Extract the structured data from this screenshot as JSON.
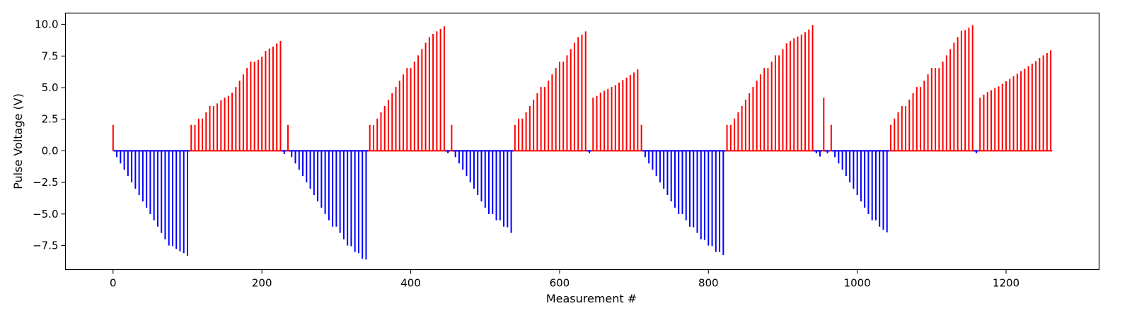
{
  "chart_data": {
    "type": "bar",
    "title": "",
    "xlabel": "Measurement #",
    "ylabel": "Pulse Voltage (V)",
    "xlim": [
      -64,
      1325
    ],
    "ylim": [
      -9.4,
      10.9
    ],
    "xticks": [
      0,
      200,
      400,
      600,
      800,
      1000,
      1200
    ],
    "yticks": [
      -7.5,
      -5.0,
      -2.5,
      0.0,
      2.5,
      5.0,
      7.5,
      10.0
    ],
    "xtick_labels": [
      "0",
      "200",
      "400",
      "600",
      "800",
      "1000",
      "1200"
    ],
    "ytick_labels": [
      "−7.5",
      "−5.0",
      "−2.5",
      "0.0",
      "2.5",
      "5.0",
      "7.5",
      "10.0"
    ],
    "colors": {
      "positive": "#ff0000",
      "negative": "#0000ff",
      "axes": "#000000"
    },
    "grid": false,
    "last_x": 1262,
    "pulses": [
      {
        "x": 0,
        "v": 2.05
      },
      {
        "x": 5,
        "v": -0.5
      },
      {
        "x": 10,
        "v": -1.0
      },
      {
        "x": 15,
        "v": -1.5
      },
      {
        "x": 20,
        "v": -2.0
      },
      {
        "x": 25,
        "v": -2.5
      },
      {
        "x": 30,
        "v": -3.0
      },
      {
        "x": 35,
        "v": -3.5
      },
      {
        "x": 40,
        "v": -4.0
      },
      {
        "x": 45,
        "v": -4.5
      },
      {
        "x": 50,
        "v": -5.0
      },
      {
        "x": 55,
        "v": -5.5
      },
      {
        "x": 60,
        "v": -6.0
      },
      {
        "x": 65,
        "v": -6.5
      },
      {
        "x": 70,
        "v": -7.0
      },
      {
        "x": 75,
        "v": -7.5
      },
      {
        "x": 80,
        "v": -7.55
      },
      {
        "x": 85,
        "v": -7.75
      },
      {
        "x": 90,
        "v": -7.95
      },
      {
        "x": 95,
        "v": -8.1
      },
      {
        "x": 100,
        "v": -8.3
      },
      {
        "x": 105,
        "v": 2.05
      },
      {
        "x": 110,
        "v": 2.05
      },
      {
        "x": 115,
        "v": 2.55
      },
      {
        "x": 120,
        "v": 2.55
      },
      {
        "x": 125,
        "v": 3.05
      },
      {
        "x": 130,
        "v": 3.55
      },
      {
        "x": 135,
        "v": 3.55
      },
      {
        "x": 140,
        "v": 3.75
      },
      {
        "x": 145,
        "v": 4.0
      },
      {
        "x": 150,
        "v": 4.2
      },
      {
        "x": 155,
        "v": 4.35
      },
      {
        "x": 160,
        "v": 4.6
      },
      {
        "x": 165,
        "v": 5.05
      },
      {
        "x": 170,
        "v": 5.55
      },
      {
        "x": 175,
        "v": 6.05
      },
      {
        "x": 180,
        "v": 6.55
      },
      {
        "x": 185,
        "v": 7.05
      },
      {
        "x": 190,
        "v": 7.05
      },
      {
        "x": 195,
        "v": 7.2
      },
      {
        "x": 200,
        "v": 7.45
      },
      {
        "x": 205,
        "v": 7.9
      },
      {
        "x": 210,
        "v": 8.1
      },
      {
        "x": 215,
        "v": 8.25
      },
      {
        "x": 220,
        "v": 8.5
      },
      {
        "x": 225,
        "v": 8.7
      },
      {
        "x": 230,
        "v": -0.25
      },
      {
        "x": 235,
        "v": 2.05
      },
      {
        "x": 240,
        "v": -0.5
      },
      {
        "x": 245,
        "v": -1.0
      },
      {
        "x": 250,
        "v": -1.5
      },
      {
        "x": 255,
        "v": -2.0
      },
      {
        "x": 260,
        "v": -2.5
      },
      {
        "x": 265,
        "v": -3.0
      },
      {
        "x": 270,
        "v": -3.5
      },
      {
        "x": 275,
        "v": -4.0
      },
      {
        "x": 280,
        "v": -4.5
      },
      {
        "x": 285,
        "v": -5.0
      },
      {
        "x": 290,
        "v": -5.5
      },
      {
        "x": 295,
        "v": -6.0
      },
      {
        "x": 300,
        "v": -6.0
      },
      {
        "x": 305,
        "v": -6.5
      },
      {
        "x": 310,
        "v": -7.0
      },
      {
        "x": 315,
        "v": -7.5
      },
      {
        "x": 320,
        "v": -7.55
      },
      {
        "x": 325,
        "v": -8.0
      },
      {
        "x": 330,
        "v": -8.1
      },
      {
        "x": 335,
        "v": -8.55
      },
      {
        "x": 340,
        "v": -8.6
      },
      {
        "x": 345,
        "v": 2.05
      },
      {
        "x": 350,
        "v": 2.05
      },
      {
        "x": 355,
        "v": 2.55
      },
      {
        "x": 360,
        "v": 3.05
      },
      {
        "x": 365,
        "v": 3.55
      },
      {
        "x": 370,
        "v": 4.05
      },
      {
        "x": 375,
        "v": 4.55
      },
      {
        "x": 380,
        "v": 5.05
      },
      {
        "x": 385,
        "v": 5.55
      },
      {
        "x": 390,
        "v": 6.05
      },
      {
        "x": 395,
        "v": 6.55
      },
      {
        "x": 400,
        "v": 6.55
      },
      {
        "x": 405,
        "v": 7.05
      },
      {
        "x": 410,
        "v": 7.55
      },
      {
        "x": 415,
        "v": 8.05
      },
      {
        "x": 420,
        "v": 8.55
      },
      {
        "x": 425,
        "v": 9.0
      },
      {
        "x": 430,
        "v": 9.25
      },
      {
        "x": 435,
        "v": 9.45
      },
      {
        "x": 440,
        "v": 9.65
      },
      {
        "x": 445,
        "v": 9.85
      },
      {
        "x": 450,
        "v": -0.2
      },
      {
        "x": 455,
        "v": 2.05
      },
      {
        "x": 460,
        "v": -0.5
      },
      {
        "x": 465,
        "v": -1.0
      },
      {
        "x": 470,
        "v": -1.5
      },
      {
        "x": 475,
        "v": -2.0
      },
      {
        "x": 480,
        "v": -2.5
      },
      {
        "x": 485,
        "v": -3.0
      },
      {
        "x": 490,
        "v": -3.5
      },
      {
        "x": 495,
        "v": -4.0
      },
      {
        "x": 500,
        "v": -4.5
      },
      {
        "x": 505,
        "v": -5.0
      },
      {
        "x": 510,
        "v": -5.0
      },
      {
        "x": 515,
        "v": -5.5
      },
      {
        "x": 520,
        "v": -5.5
      },
      {
        "x": 525,
        "v": -6.0
      },
      {
        "x": 530,
        "v": -6.05
      },
      {
        "x": 535,
        "v": -6.5
      },
      {
        "x": 540,
        "v": 2.05
      },
      {
        "x": 545,
        "v": 2.55
      },
      {
        "x": 550,
        "v": 2.55
      },
      {
        "x": 555,
        "v": 3.05
      },
      {
        "x": 560,
        "v": 3.55
      },
      {
        "x": 565,
        "v": 4.05
      },
      {
        "x": 570,
        "v": 4.55
      },
      {
        "x": 575,
        "v": 5.05
      },
      {
        "x": 580,
        "v": 5.05
      },
      {
        "x": 585,
        "v": 5.55
      },
      {
        "x": 590,
        "v": 6.05
      },
      {
        "x": 595,
        "v": 6.55
      },
      {
        "x": 600,
        "v": 7.05
      },
      {
        "x": 605,
        "v": 7.05
      },
      {
        "x": 610,
        "v": 7.55
      },
      {
        "x": 615,
        "v": 8.05
      },
      {
        "x": 620,
        "v": 8.55
      },
      {
        "x": 625,
        "v": 9.0
      },
      {
        "x": 630,
        "v": 9.2
      },
      {
        "x": 635,
        "v": 9.45
      },
      {
        "x": 640,
        "v": -0.2
      },
      {
        "x": 645,
        "v": 4.2
      },
      {
        "x": 650,
        "v": 4.35
      },
      {
        "x": 655,
        "v": 4.6
      },
      {
        "x": 660,
        "v": 4.75
      },
      {
        "x": 665,
        "v": 4.9
      },
      {
        "x": 670,
        "v": 5.05
      },
      {
        "x": 675,
        "v": 5.2
      },
      {
        "x": 680,
        "v": 5.4
      },
      {
        "x": 685,
        "v": 5.6
      },
      {
        "x": 690,
        "v": 5.8
      },
      {
        "x": 695,
        "v": 6.0
      },
      {
        "x": 700,
        "v": 6.2
      },
      {
        "x": 705,
        "v": 6.45
      },
      {
        "x": 710,
        "v": 2.05
      },
      {
        "x": 715,
        "v": -0.5
      },
      {
        "x": 720,
        "v": -1.0
      },
      {
        "x": 725,
        "v": -1.5
      },
      {
        "x": 730,
        "v": -2.0
      },
      {
        "x": 735,
        "v": -2.5
      },
      {
        "x": 740,
        "v": -3.0
      },
      {
        "x": 745,
        "v": -3.5
      },
      {
        "x": 750,
        "v": -4.0
      },
      {
        "x": 755,
        "v": -4.5
      },
      {
        "x": 760,
        "v": -5.0
      },
      {
        "x": 765,
        "v": -5.0
      },
      {
        "x": 770,
        "v": -5.5
      },
      {
        "x": 775,
        "v": -6.0
      },
      {
        "x": 780,
        "v": -6.05
      },
      {
        "x": 785,
        "v": -6.5
      },
      {
        "x": 790,
        "v": -7.0
      },
      {
        "x": 795,
        "v": -7.05
      },
      {
        "x": 800,
        "v": -7.5
      },
      {
        "x": 805,
        "v": -7.55
      },
      {
        "x": 810,
        "v": -8.0
      },
      {
        "x": 815,
        "v": -8.0
      },
      {
        "x": 820,
        "v": -8.25
      },
      {
        "x": 825,
        "v": 2.05
      },
      {
        "x": 830,
        "v": 2.05
      },
      {
        "x": 835,
        "v": 2.55
      },
      {
        "x": 840,
        "v": 3.05
      },
      {
        "x": 845,
        "v": 3.55
      },
      {
        "x": 850,
        "v": 4.05
      },
      {
        "x": 855,
        "v": 4.55
      },
      {
        "x": 860,
        "v": 5.05
      },
      {
        "x": 865,
        "v": 5.55
      },
      {
        "x": 870,
        "v": 6.05
      },
      {
        "x": 875,
        "v": 6.55
      },
      {
        "x": 880,
        "v": 6.55
      },
      {
        "x": 885,
        "v": 7.05
      },
      {
        "x": 890,
        "v": 7.55
      },
      {
        "x": 895,
        "v": 7.55
      },
      {
        "x": 900,
        "v": 8.05
      },
      {
        "x": 905,
        "v": 8.5
      },
      {
        "x": 910,
        "v": 8.7
      },
      {
        "x": 915,
        "v": 8.9
      },
      {
        "x": 920,
        "v": 9.05
      },
      {
        "x": 925,
        "v": 9.2
      },
      {
        "x": 930,
        "v": 9.4
      },
      {
        "x": 935,
        "v": 9.6
      },
      {
        "x": 940,
        "v": 9.95
      },
      {
        "x": 945,
        "v": -0.2
      },
      {
        "x": 950,
        "v": -0.45
      },
      {
        "x": 955,
        "v": 4.2
      },
      {
        "x": 960,
        "v": -0.2
      },
      {
        "x": 965,
        "v": 2.05
      },
      {
        "x": 970,
        "v": -0.5
      },
      {
        "x": 975,
        "v": -1.0
      },
      {
        "x": 980,
        "v": -1.5
      },
      {
        "x": 985,
        "v": -2.0
      },
      {
        "x": 990,
        "v": -2.5
      },
      {
        "x": 995,
        "v": -3.0
      },
      {
        "x": 1000,
        "v": -3.5
      },
      {
        "x": 1005,
        "v": -4.0
      },
      {
        "x": 1010,
        "v": -4.5
      },
      {
        "x": 1015,
        "v": -5.0
      },
      {
        "x": 1020,
        "v": -5.5
      },
      {
        "x": 1025,
        "v": -5.5
      },
      {
        "x": 1030,
        "v": -6.0
      },
      {
        "x": 1035,
        "v": -6.25
      },
      {
        "x": 1040,
        "v": -6.45
      },
      {
        "x": 1045,
        "v": 2.05
      },
      {
        "x": 1050,
        "v": 2.55
      },
      {
        "x": 1055,
        "v": 3.05
      },
      {
        "x": 1060,
        "v": 3.55
      },
      {
        "x": 1065,
        "v": 3.55
      },
      {
        "x": 1070,
        "v": 4.05
      },
      {
        "x": 1075,
        "v": 4.55
      },
      {
        "x": 1080,
        "v": 5.05
      },
      {
        "x": 1085,
        "v": 5.05
      },
      {
        "x": 1090,
        "v": 5.55
      },
      {
        "x": 1095,
        "v": 6.05
      },
      {
        "x": 1100,
        "v": 6.55
      },
      {
        "x": 1105,
        "v": 6.55
      },
      {
        "x": 1110,
        "v": 6.55
      },
      {
        "x": 1115,
        "v": 7.05
      },
      {
        "x": 1120,
        "v": 7.55
      },
      {
        "x": 1125,
        "v": 8.05
      },
      {
        "x": 1130,
        "v": 8.55
      },
      {
        "x": 1135,
        "v": 9.0
      },
      {
        "x": 1140,
        "v": 9.5
      },
      {
        "x": 1145,
        "v": 9.55
      },
      {
        "x": 1150,
        "v": 9.75
      },
      {
        "x": 1155,
        "v": 9.95
      },
      {
        "x": 1160,
        "v": -0.2
      },
      {
        "x": 1165,
        "v": 4.2
      },
      {
        "x": 1170,
        "v": 4.45
      },
      {
        "x": 1175,
        "v": 4.65
      },
      {
        "x": 1180,
        "v": 4.8
      },
      {
        "x": 1185,
        "v": 4.95
      },
      {
        "x": 1190,
        "v": 5.1
      },
      {
        "x": 1195,
        "v": 5.3
      },
      {
        "x": 1200,
        "v": 5.5
      },
      {
        "x": 1205,
        "v": 5.7
      },
      {
        "x": 1210,
        "v": 5.9
      },
      {
        "x": 1215,
        "v": 6.1
      },
      {
        "x": 1220,
        "v": 6.3
      },
      {
        "x": 1225,
        "v": 6.5
      },
      {
        "x": 1230,
        "v": 6.7
      },
      {
        "x": 1235,
        "v": 6.9
      },
      {
        "x": 1240,
        "v": 7.1
      },
      {
        "x": 1245,
        "v": 7.35
      },
      {
        "x": 1250,
        "v": 7.55
      },
      {
        "x": 1255,
        "v": 7.75
      },
      {
        "x": 1260,
        "v": 7.95
      }
    ]
  }
}
